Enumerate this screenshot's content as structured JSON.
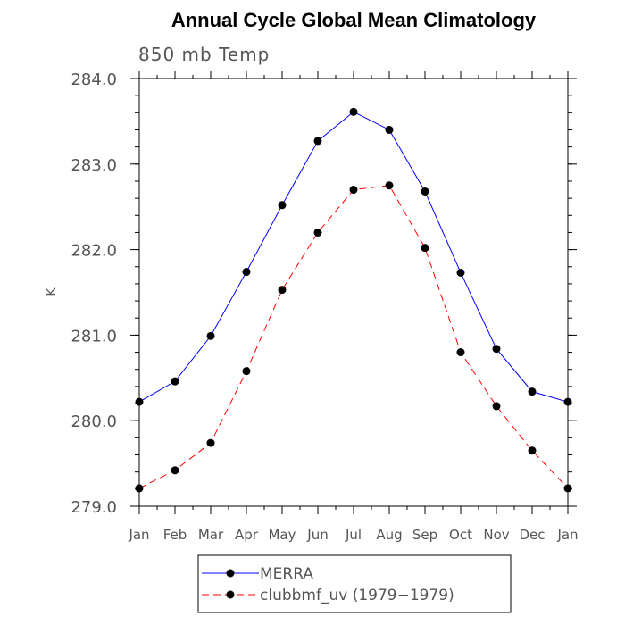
{
  "chart_data": {
    "type": "line",
    "title": "Annual Cycle Global Mean Climatology",
    "subtitle": "850 mb Temp",
    "ylabel": "K",
    "xlabel": "",
    "categories": [
      "Jan",
      "Feb",
      "Mar",
      "Apr",
      "May",
      "Jun",
      "Jul",
      "Aug",
      "Sep",
      "Oct",
      "Nov",
      "Dec",
      "Jan"
    ],
    "ylim": [
      279.0,
      284.0
    ],
    "yticks": [
      "279.0",
      "280.0",
      "281.0",
      "282.0",
      "283.0",
      "284.0"
    ],
    "grid": false,
    "legend_position": "bottom",
    "series": [
      {
        "name": "MERRA",
        "color": "#0000ff",
        "dash": "solid",
        "values": [
          280.22,
          280.46,
          280.99,
          281.74,
          282.52,
          283.27,
          283.61,
          283.4,
          282.68,
          281.73,
          280.84,
          280.34,
          280.22
        ]
      },
      {
        "name": "clubbmf_uv (1979−1979)",
        "color": "#ff0000",
        "dash": "dashed",
        "values": [
          279.21,
          279.42,
          279.74,
          280.58,
          281.53,
          282.2,
          282.7,
          282.75,
          282.02,
          280.8,
          280.17,
          279.65,
          279.21
        ]
      }
    ]
  }
}
